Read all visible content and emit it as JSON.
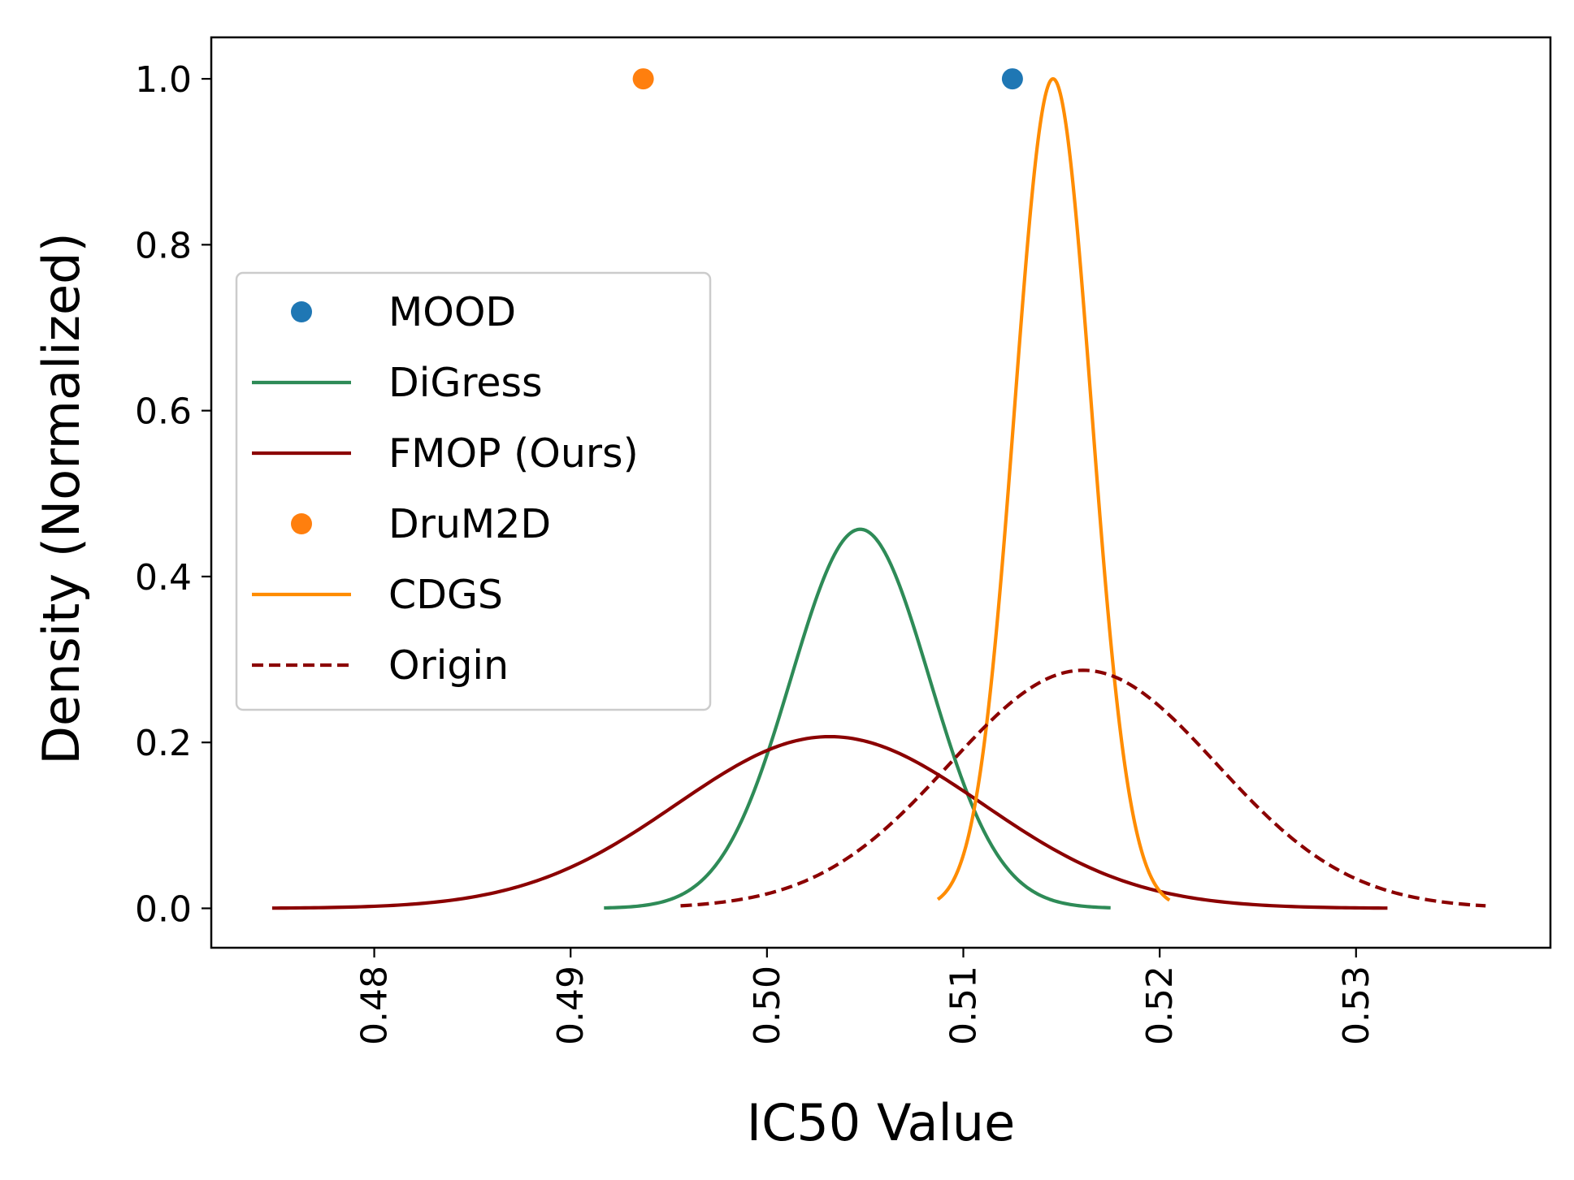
{
  "chart_data": {
    "type": "line",
    "title": "",
    "xlabel": "IC50 Value",
    "ylabel": "Density (Normalized)",
    "xlim": [
      0.4717,
      0.5399
    ],
    "ylim": [
      -0.0475,
      1.05
    ],
    "xticks": [
      0.48,
      0.49,
      0.5,
      0.51,
      0.52,
      0.53
    ],
    "xtick_labels": [
      "0.48",
      "0.49",
      "0.50",
      "0.51",
      "0.52",
      "0.53"
    ],
    "yticks": [
      0.0,
      0.2,
      0.4,
      0.6,
      0.8,
      1.0
    ],
    "ytick_labels": [
      "0.0",
      "0.2",
      "0.4",
      "0.6",
      "0.8",
      "1.0"
    ],
    "xtick_rotation": "vertical",
    "grid": false,
    "legend_position": "center-left",
    "series": [
      {
        "name": "MOOD",
        "kind": "point",
        "color": "#1f77b4",
        "x": [
          0.5125
        ],
        "y": [
          1.0
        ]
      },
      {
        "name": "DiGress",
        "kind": "gaussian",
        "style": "solid",
        "color": "#2e8b57",
        "mean": 0.50475,
        "std": 0.00353,
        "peak": 0.457,
        "x_range": [
          0.4917,
          0.5175
        ]
      },
      {
        "name": "FMOP (Ours)",
        "kind": "gaussian",
        "style": "solid",
        "color": "#8b0000",
        "mean": 0.5032,
        "std": 0.0078,
        "peak": 0.207,
        "x_range": [
          0.4748,
          0.5316
        ]
      },
      {
        "name": "DruM2D",
        "kind": "point",
        "color": "#ff7f0e",
        "x": [
          0.4937
        ],
        "y": [
          1.0
        ]
      },
      {
        "name": "CDGS",
        "kind": "gaussian",
        "style": "solid",
        "color": "#ff8c00",
        "mean": 0.51457,
        "std": 0.00195,
        "peak": 1.0,
        "x_range": [
          0.5087,
          0.5205
        ]
      },
      {
        "name": "Origin",
        "kind": "gaussian",
        "style": "dashed",
        "color": "#8b0000",
        "mean": 0.5161,
        "std": 0.0068,
        "peak": 0.287,
        "x_range": [
          0.4956,
          0.5366
        ]
      }
    ]
  }
}
